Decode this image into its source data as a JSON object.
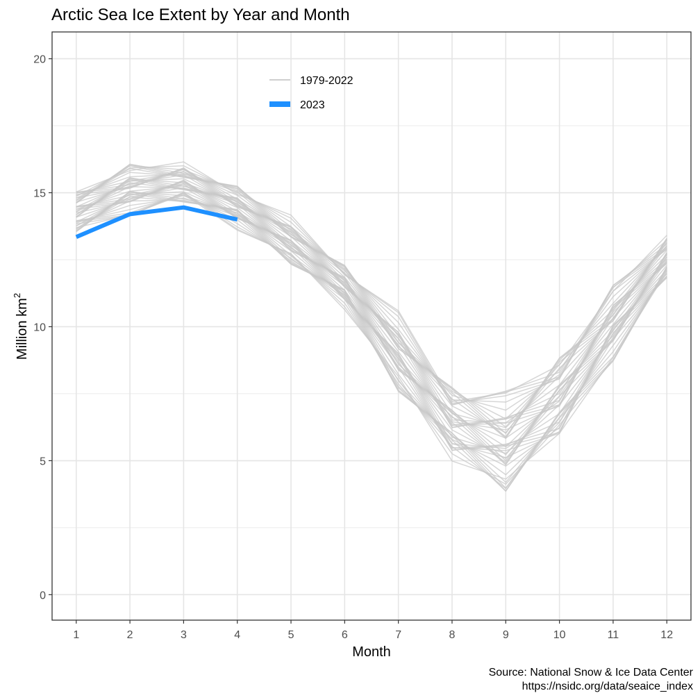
{
  "chart_data": {
    "type": "line",
    "title": "Arctic Sea Ice Extent by Year and Month",
    "xlabel": "Month",
    "ylabel": "Million km",
    "ylabel_superscript": "2",
    "x": [
      1,
      2,
      3,
      4,
      5,
      6,
      7,
      8,
      9,
      10,
      11,
      12
    ],
    "xlim": [
      0.55,
      12.45
    ],
    "ylim": [
      -0.95,
      21
    ],
    "x_ticks": [
      "1",
      "2",
      "3",
      "4",
      "5",
      "6",
      "7",
      "8",
      "9",
      "10",
      "11",
      "12"
    ],
    "y_ticks": [
      "0",
      "5",
      "10",
      "15",
      "20"
    ],
    "grid": true,
    "legend_position": "top-center-inside",
    "legend": [
      {
        "label": "1979-2022",
        "color": "#bdbdbd"
      },
      {
        "label": "2023",
        "color": "#1e90ff"
      }
    ],
    "background_years": [
      1979,
      1980,
      1981,
      1982,
      1983,
      1984,
      1985,
      1986,
      1987,
      1988,
      1989,
      1990,
      1991,
      1992,
      1993,
      1994,
      1995,
      1996,
      1997,
      1998,
      1999,
      2000,
      2001,
      2002,
      2003,
      2004,
      2005,
      2006,
      2007,
      2008,
      2009,
      2010,
      2011,
      2012,
      2013,
      2014,
      2015,
      2016,
      2017,
      2018,
      2019,
      2020,
      2021,
      2022
    ],
    "background_lows": [
      13.2,
      14.1,
      14.4,
      13.6,
      12.1,
      10.6,
      7.3,
      4.7,
      3.6,
      5.3,
      8.6,
      11.5
    ],
    "background_highs": [
      15.4,
      16.2,
      16.3,
      15.4,
      14.2,
      12.5,
      10.6,
      8.2,
      7.7,
      9.5,
      11.7,
      13.7
    ],
    "highlight_series": {
      "name": "2023",
      "color": "#1e90ff",
      "values": [
        13.35,
        14.2,
        14.45,
        14.0,
        null,
        null,
        null,
        null,
        null,
        null,
        null,
        null
      ]
    }
  },
  "caption": {
    "line1": "Source: National Snow & Ice Data Center",
    "line2": "https://nsidc.org/data/seaice_index"
  }
}
